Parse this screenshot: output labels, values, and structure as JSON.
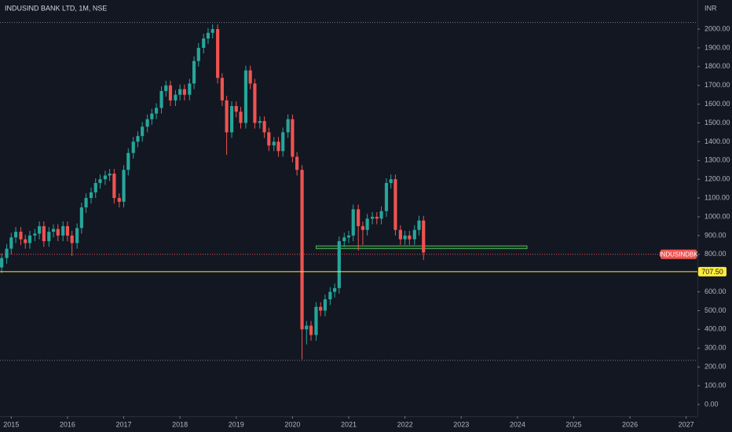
{
  "chart_data": {
    "type": "candlestick",
    "title": "INDUSIND BANK LTD, 1M, NSE",
    "currency": "INR",
    "up_color": "#26a69a",
    "down_color": "#ef5350",
    "xlim": [
      2014.8,
      2027.2
    ],
    "xticks": [
      2015,
      2016,
      2017,
      2018,
      2019,
      2020,
      2021,
      2022,
      2023,
      2024,
      2025,
      2026,
      2027
    ],
    "ylim": [
      -63,
      2155
    ],
    "yticks": [
      {
        "value": 0,
        "label": "0.00"
      },
      {
        "value": 100,
        "label": "100.00"
      },
      {
        "value": 200,
        "label": "200.00"
      },
      {
        "value": 300,
        "label": "300.00"
      },
      {
        "value": 400,
        "label": "400.00"
      },
      {
        "value": 500,
        "label": "500.00"
      },
      {
        "value": 600,
        "label": "600.00"
      },
      {
        "value": 700,
        "label": "700.00"
      },
      {
        "value": 800,
        "label": "800.00"
      },
      {
        "value": 900,
        "label": "900.00"
      },
      {
        "value": 1000,
        "label": "1000.00"
      },
      {
        "value": 1100,
        "label": "1100.00"
      },
      {
        "value": 1200,
        "label": "1200.00"
      },
      {
        "value": 1300,
        "label": "1300.00"
      },
      {
        "value": 1400,
        "label": "1400.00"
      },
      {
        "value": 1500,
        "label": "1500.00"
      },
      {
        "value": 1600,
        "label": "1600.00"
      },
      {
        "value": 1700,
        "label": "1700.00"
      },
      {
        "value": 1800,
        "label": "1800.00"
      },
      {
        "value": 1900,
        "label": "1900.00"
      },
      {
        "value": 2000,
        "label": "2000.00"
      }
    ],
    "x": [
      2014.83,
      2014.92,
      2015,
      2015.08,
      2015.17,
      2015.25,
      2015.33,
      2015.42,
      2015.5,
      2015.58,
      2015.67,
      2015.75,
      2015.83,
      2015.92,
      2016,
      2016.08,
      2016.17,
      2016.25,
      2016.33,
      2016.42,
      2016.5,
      2016.58,
      2016.67,
      2016.75,
      2016.83,
      2016.92,
      2017,
      2017.08,
      2017.17,
      2017.25,
      2017.33,
      2017.42,
      2017.5,
      2017.58,
      2017.67,
      2017.75,
      2017.83,
      2017.92,
      2018,
      2018.08,
      2018.17,
      2018.25,
      2018.33,
      2018.42,
      2018.5,
      2018.58,
      2018.67,
      2018.75,
      2018.83,
      2018.92,
      2019,
      2019.08,
      2019.17,
      2019.25,
      2019.33,
      2019.42,
      2019.5,
      2019.58,
      2019.67,
      2019.75,
      2019.83,
      2019.92,
      2020,
      2020.08,
      2020.17,
      2020.25,
      2020.33,
      2020.42,
      2020.5,
      2020.58,
      2020.67,
      2020.75,
      2020.83,
      2020.92,
      2021,
      2021.08,
      2021.17,
      2021.25,
      2021.33,
      2021.42,
      2021.5,
      2021.58,
      2021.67,
      2021.75,
      2021.83,
      2021.92,
      2022,
      2022.08,
      2022.17,
      2022.25,
      2022.33
    ],
    "open": [
      730,
      780,
      830,
      890,
      920,
      880,
      860,
      900,
      910,
      950,
      870,
      920,
      935,
      900,
      950,
      900,
      860,
      940,
      1050,
      1100,
      1130,
      1180,
      1200,
      1220,
      1230,
      1100,
      1080,
      1250,
      1340,
      1400,
      1430,
      1480,
      1520,
      1550,
      1580,
      1670,
      1700,
      1620,
      1650,
      1680,
      1650,
      1710,
      1830,
      1900,
      1950,
      1980,
      2000,
      1740,
      1620,
      1450,
      1590,
      1560,
      1500,
      1780,
      1710,
      1500,
      1510,
      1450,
      1380,
      1400,
      1350,
      1450,
      1520,
      1320,
      1250,
      400,
      420,
      370,
      520,
      500,
      560,
      600,
      620,
      870,
      890,
      900,
      1040,
      950,
      930,
      990,
      1000,
      990,
      1030,
      1180,
      1200,
      930,
      880,
      900,
      880,
      930,
      980
    ],
    "high": [
      805,
      855,
      915,
      945,
      945,
      905,
      925,
      935,
      975,
      975,
      945,
      960,
      960,
      975,
      975,
      925,
      965,
      1075,
      1125,
      1155,
      1205,
      1225,
      1245,
      1255,
      1255,
      1125,
      1275,
      1365,
      1425,
      1455,
      1505,
      1545,
      1575,
      1605,
      1695,
      1725,
      1725,
      1675,
      1705,
      1705,
      1735,
      1855,
      1925,
      1975,
      2005,
      2025,
      2025,
      1765,
      1645,
      1615,
      1615,
      1585,
      1805,
      1805,
      1735,
      1535,
      1535,
      1475,
      1425,
      1425,
      1475,
      1545,
      1545,
      1345,
      1275,
      445,
      445,
      545,
      545,
      585,
      625,
      645,
      895,
      915,
      925,
      1065,
      1065,
      975,
      1015,
      1025,
      1025,
      1055,
      1205,
      1225,
      1225,
      955,
      925,
      925,
      955,
      1005,
      1005
    ],
    "low": [
      700,
      750,
      800,
      860,
      850,
      830,
      830,
      870,
      880,
      840,
      840,
      890,
      870,
      870,
      870,
      790,
      830,
      910,
      1020,
      1070,
      1100,
      1150,
      1170,
      1190,
      1070,
      1050,
      1050,
      1220,
      1310,
      1370,
      1400,
      1450,
      1490,
      1520,
      1550,
      1640,
      1590,
      1590,
      1620,
      1620,
      1620,
      1680,
      1800,
      1870,
      1920,
      1950,
      1710,
      1590,
      1330,
      1420,
      1530,
      1470,
      1470,
      1680,
      1470,
      1470,
      1420,
      1350,
      1350,
      1320,
      1320,
      1420,
      1290,
      1220,
      240,
      320,
      340,
      340,
      470,
      470,
      530,
      570,
      590,
      840,
      860,
      870,
      820,
      850,
      900,
      960,
      960,
      960,
      1000,
      1150,
      900,
      850,
      850,
      850,
      850,
      900,
      770
    ],
    "close": [
      780,
      830,
      890,
      920,
      880,
      860,
      900,
      910,
      950,
      870,
      920,
      935,
      900,
      950,
      900,
      860,
      940,
      1050,
      1100,
      1130,
      1180,
      1200,
      1220,
      1230,
      1100,
      1080,
      1250,
      1340,
      1400,
      1430,
      1480,
      1520,
      1550,
      1580,
      1670,
      1700,
      1620,
      1650,
      1680,
      1650,
      1710,
      1830,
      1900,
      1950,
      1980,
      2000,
      1740,
      1620,
      1450,
      1590,
      1560,
      1500,
      1780,
      1710,
      1500,
      1510,
      1450,
      1380,
      1400,
      1350,
      1450,
      1520,
      1320,
      1250,
      400,
      420,
      370,
      520,
      500,
      560,
      600,
      620,
      870,
      890,
      900,
      1040,
      950,
      930,
      990,
      1000,
      990,
      1030,
      1180,
      1200,
      930,
      880,
      900,
      880,
      930,
      980,
      810
    ],
    "range_levels": [
      2035,
      235
    ],
    "last_price": {
      "value": 800,
      "label": "INDUSINDBK",
      "color": "#ef5350"
    },
    "level_line": {
      "value": 707.5,
      "label": "707.50",
      "color": "#ffeb3b"
    },
    "zone": {
      "x": [
        2020.42,
        2024.17
      ],
      "y": [
        830,
        845
      ],
      "color": "#4caf50"
    }
  }
}
